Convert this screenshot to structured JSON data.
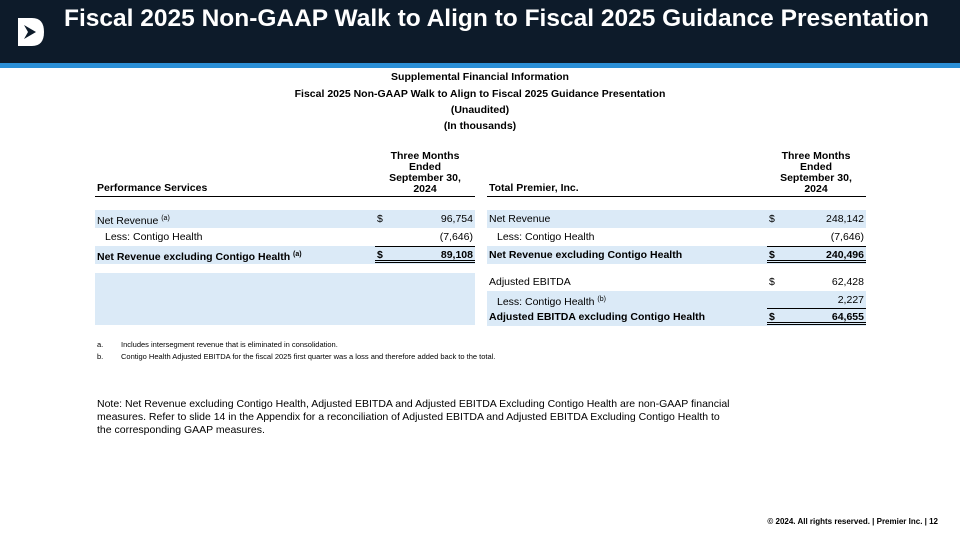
{
  "slide": {
    "title": "Fiscal 2025 Non-GAAP Walk to Align to Fiscal 2025 Guidance Presentation"
  },
  "supplemental": {
    "line1": "Supplemental Financial Information",
    "line2": "Fiscal 2025 Non-GAAP Walk to Align to Fiscal 2025 Guidance Presentation",
    "line3": "(Unaudited)",
    "line4": "(In thousands)"
  },
  "left_table": {
    "section_label": "Performance Services",
    "period_header": [
      "Three Months",
      "Ended",
      "September 30,",
      "2024"
    ],
    "rows": [
      {
        "label": "Net Revenue",
        "sup": "(a)",
        "currency": "$",
        "value": "96,754"
      },
      {
        "label": "Less: Contigo Health",
        "sup": "",
        "currency": "",
        "value": "(7,646)"
      },
      {
        "label": "Net Revenue excluding Contigo Health",
        "sup": "(a)",
        "currency": "$",
        "value": "89,108"
      }
    ]
  },
  "right_table": {
    "section_label": "Total Premier, Inc.",
    "period_header": [
      "Three Months",
      "Ended",
      "September 30,",
      "2024"
    ],
    "rows": [
      {
        "label": "Net Revenue",
        "sup": "",
        "currency": "$",
        "value": "248,142"
      },
      {
        "label": "Less: Contigo Health",
        "sup": "",
        "currency": "",
        "value": "(7,646)"
      },
      {
        "label": "Net Revenue excluding Contigo Health",
        "sup": "",
        "currency": "$",
        "value": "240,496"
      },
      {
        "label": "Adjusted EBITDA",
        "sup": "",
        "currency": "$",
        "value": "62,428"
      },
      {
        "label": "Less: Contigo Health",
        "sup": "(b)",
        "currency": "",
        "value": "2,227"
      },
      {
        "label": "Adjusted EBITDA excluding Contigo Health",
        "sup": "",
        "currency": "$",
        "value": "64,655"
      }
    ]
  },
  "footnotes": [
    {
      "letter": "a.",
      "text": "Includes intersegment revenue that is eliminated in consolidation."
    },
    {
      "letter": "b.",
      "text": "Contigo Health Adjusted EBITDA for the fiscal 2025 first quarter was a loss and therefore added back to the total."
    }
  ],
  "note": "Note:  Net Revenue excluding Contigo Health, Adjusted EBITDA and Adjusted EBITDA Excluding Contigo Health are non-GAAP financial measures. Refer to slide 14 in the Appendix for a reconciliation of Adjusted EBITDA and Adjusted EBITDA Excluding Contigo Health to the corresponding GAAP measures.",
  "footer": "© 2024. All rights reserved.  |  Premier Inc.  |  12",
  "colors": {
    "header_bg": "#0d1b2a",
    "accent": "#2b8fd6",
    "row_shade": "#dbeaf7"
  }
}
